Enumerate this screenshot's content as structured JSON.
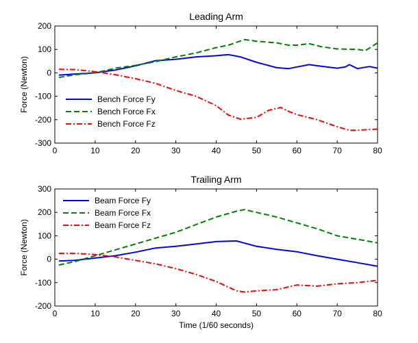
{
  "chart_data": [
    {
      "type": "line",
      "title": "Leading Arm",
      "xlabel": "",
      "ylabel": "Force (Newton)",
      "xlim": [
        0,
        80
      ],
      "ylim": [
        -300,
        200
      ],
      "xticks": [
        0,
        10,
        20,
        30,
        40,
        50,
        60,
        70,
        80
      ],
      "yticks": [
        -300,
        -200,
        -100,
        0,
        100,
        200
      ],
      "legend_position": "lower-left",
      "series": [
        {
          "name": "Bench Force Fy",
          "color": "#0000ff",
          "style": "solid",
          "x": [
            1,
            5,
            10,
            15,
            20,
            25,
            30,
            35,
            40,
            43,
            46,
            50,
            55,
            58,
            60,
            63,
            66,
            70,
            72,
            73,
            75,
            78,
            80
          ],
          "y": [
            -10,
            -5,
            0,
            12,
            30,
            52,
            58,
            68,
            73,
            78,
            68,
            45,
            22,
            18,
            25,
            35,
            28,
            20,
            25,
            35,
            18,
            27,
            20
          ]
        },
        {
          "name": "Bench Force Fx",
          "color": "#008000",
          "style": "dashed",
          "x": [
            1,
            5,
            10,
            15,
            20,
            25,
            30,
            35,
            40,
            43,
            47,
            50,
            55,
            58,
            60,
            63,
            66,
            70,
            75,
            77,
            80
          ],
          "y": [
            -20,
            -8,
            0,
            20,
            32,
            48,
            68,
            85,
            108,
            118,
            142,
            135,
            128,
            118,
            118,
            125,
            112,
            102,
            100,
            95,
            128
          ]
        },
        {
          "name": "Bench Force Fz",
          "color": "#ff0000",
          "style": "dashdot",
          "x": [
            1,
            5,
            10,
            15,
            20,
            25,
            30,
            35,
            40,
            43,
            46,
            50,
            53,
            56,
            58,
            60,
            65,
            70,
            73,
            75,
            80
          ],
          "y": [
            15,
            14,
            5,
            -8,
            -25,
            -45,
            -75,
            -100,
            -140,
            -180,
            -198,
            -190,
            -160,
            -148,
            -165,
            -178,
            -200,
            -230,
            -245,
            -245,
            -240
          ]
        }
      ]
    },
    {
      "type": "line",
      "title": "Trailing Arm",
      "xlabel": "Time (1/60 seconds)",
      "ylabel": "Force (Newton)",
      "xlim": [
        0,
        80
      ],
      "ylim": [
        -200,
        300
      ],
      "xticks": [
        0,
        10,
        20,
        30,
        40,
        50,
        60,
        70,
        80
      ],
      "yticks": [
        -200,
        -100,
        0,
        100,
        200,
        300
      ],
      "legend_position": "top-left",
      "series": [
        {
          "name": "Beam Force Fy",
          "color": "#0000ff",
          "style": "solid",
          "x": [
            1,
            5,
            10,
            15,
            20,
            25,
            30,
            35,
            40,
            45,
            50,
            55,
            60,
            65,
            70,
            75,
            80
          ],
          "y": [
            -8,
            -5,
            5,
            15,
            30,
            48,
            55,
            65,
            75,
            78,
            55,
            42,
            32,
            15,
            0,
            -15,
            -30
          ]
        },
        {
          "name": "Beam Force Fx",
          "color": "#008000",
          "style": "dashed",
          "x": [
            1,
            5,
            10,
            15,
            20,
            25,
            30,
            35,
            40,
            45,
            47,
            50,
            55,
            60,
            65,
            70,
            75,
            80
          ],
          "y": [
            -25,
            -10,
            15,
            40,
            65,
            90,
            115,
            148,
            180,
            205,
            212,
            200,
            180,
            155,
            130,
            100,
            85,
            70
          ]
        },
        {
          "name": "Beam Force Fz",
          "color": "#ff0000",
          "style": "dashdot",
          "x": [
            1,
            5,
            10,
            15,
            20,
            25,
            30,
            35,
            40,
            45,
            47,
            50,
            55,
            60,
            65,
            70,
            75,
            80
          ],
          "y": [
            25,
            25,
            20,
            10,
            -5,
            -20,
            -40,
            -65,
            -95,
            -135,
            -140,
            -135,
            -130,
            -110,
            -115,
            -105,
            -100,
            -90
          ]
        }
      ]
    }
  ]
}
